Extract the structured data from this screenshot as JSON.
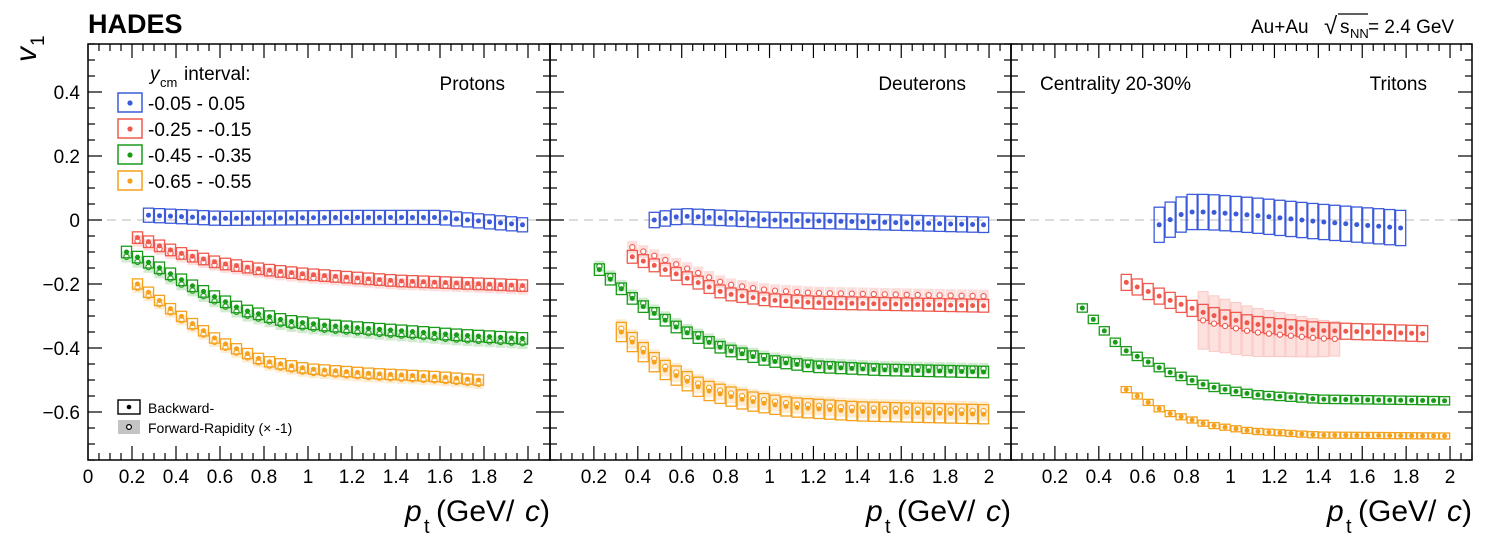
{
  "header": {
    "experiment": "HADES",
    "system_prefix": "Au+Au ",
    "sqrt_symbol": "√",
    "s_nn": "s",
    "s_nn_sub": "NN",
    "energy": " = 2.4 GeV"
  },
  "legend": {
    "title_var": "y",
    "title_sub": "cm",
    "title_rest": " interval:",
    "entries": [
      "-0.05 - 0.05",
      "-0.25 - -0.15",
      "-0.45 - -0.35",
      "-0.65 - -0.55"
    ],
    "marker_legend": [
      "Backward-",
      "Forward-Rapidity (× -1)"
    ]
  },
  "annotation": "Centrality 20-30%",
  "colors": {
    "blue": "#3b5bdb",
    "red": "#f05a4e",
    "green": "#1a9c1a",
    "orange": "#f5a11c",
    "reference_line": "#c8c8c8"
  },
  "chart_data": {
    "type": "scatter",
    "y_axis": {
      "label_main": "v",
      "label_sub": "1",
      "range": [
        -0.75,
        0.55
      ],
      "ticks": [
        0.4,
        0.2,
        0,
        -0.2,
        -0.4,
        -0.6
      ],
      "tick_labels": [
        "0.4",
        "0.2",
        "0",
        "−0.2",
        "−0.4",
        "−0.6"
      ]
    },
    "x_axis": {
      "label_main": "p",
      "label_sub": "t",
      "label_unit": " (GeV/",
      "label_c": "c",
      "label_close": ")",
      "range": [
        0,
        2.1
      ],
      "ticks": [
        [
          0,
          0.2,
          0.4,
          0.6,
          0.8,
          1,
          1.2,
          1.4,
          1.6,
          1.8,
          2
        ],
        [
          0.2,
          0.4,
          0.6,
          0.8,
          1,
          1.2,
          1.4,
          1.6,
          1.8,
          2
        ],
        [
          0.2,
          0.4,
          0.6,
          0.8,
          1,
          1.2,
          1.4,
          1.6,
          1.8,
          2
        ]
      ],
      "tick_labels": [
        [
          "0",
          "0.2",
          "0.4",
          "0.6",
          "0.8",
          "1",
          "1.2",
          "1.4",
          "1.6",
          "1.8",
          "2"
        ],
        [
          "0.2",
          "0.4",
          "0.6",
          "0.8",
          "1",
          "1.2",
          "1.4",
          "1.6",
          "1.8",
          "2"
        ],
        [
          "0.2",
          "0.4",
          "0.6",
          "0.8",
          "1",
          "1.2",
          "1.4",
          "1.6",
          "1.8",
          "2"
        ]
      ]
    },
    "panels": [
      {
        "title": "Protons",
        "series": [
          {
            "name": "-0.05 - 0.05",
            "color": "blue",
            "start": 0.275,
            "end": 1.975,
            "step": 0.05,
            "shape": [
              [
                0.275,
                0.015
              ],
              [
                0.6,
                0.005
              ],
              [
                1.2,
                0.008
              ],
              [
                1.6,
                0.008
              ],
              [
                1.975,
                -0.015
              ]
            ],
            "syst": 0.022,
            "forward_offset": 0
          },
          {
            "name": "-0.25 - -0.15",
            "color": "red",
            "start": 0.225,
            "end": 1.975,
            "step": 0.05,
            "shape": [
              [
                0.225,
                -0.055
              ],
              [
                0.4,
                -0.1
              ],
              [
                0.6,
                -0.135
              ],
              [
                0.8,
                -0.155
              ],
              [
                1.0,
                -0.17
              ],
              [
                1.2,
                -0.18
              ],
              [
                1.4,
                -0.19
              ],
              [
                1.6,
                -0.195
              ],
              [
                1.8,
                -0.2
              ],
              [
                1.975,
                -0.205
              ]
            ],
            "syst": 0.018,
            "forward_offset": -0.01
          },
          {
            "name": "-0.45 - -0.35",
            "color": "green",
            "start": 0.175,
            "end": 1.975,
            "step": 0.05,
            "shape": [
              [
                0.175,
                -0.1
              ],
              [
                0.3,
                -0.14
              ],
              [
                0.5,
                -0.215
              ],
              [
                0.7,
                -0.28
              ],
              [
                0.9,
                -0.315
              ],
              [
                1.1,
                -0.33
              ],
              [
                1.4,
                -0.345
              ],
              [
                1.7,
                -0.36
              ],
              [
                1.975,
                -0.37
              ]
            ],
            "syst": 0.018,
            "forward_offset": -0.015
          },
          {
            "name": "-0.65 - -0.55",
            "color": "orange",
            "start": 0.225,
            "end": 1.775,
            "step": 0.05,
            "shape": [
              [
                0.225,
                -0.2
              ],
              [
                0.4,
                -0.29
              ],
              [
                0.6,
                -0.38
              ],
              [
                0.8,
                -0.44
              ],
              [
                1.0,
                -0.465
              ],
              [
                1.3,
                -0.48
              ],
              [
                1.6,
                -0.49
              ],
              [
                1.775,
                -0.5
              ]
            ],
            "syst": 0.016,
            "forward_offset": -0.012
          }
        ]
      },
      {
        "title": "Deuterons",
        "series": [
          {
            "name": "-0.05 - 0.05",
            "color": "blue",
            "start": 0.475,
            "end": 1.975,
            "step": 0.05,
            "shape": [
              [
                0.475,
                0.0
              ],
              [
                0.6,
                0.012
              ],
              [
                0.8,
                0.006
              ],
              [
                1.0,
                0.0
              ],
              [
                1.4,
                -0.005
              ],
              [
                1.975,
                -0.015
              ]
            ],
            "syst": 0.024,
            "forward_offset": 0
          },
          {
            "name": "-0.25 - -0.15",
            "color": "red",
            "start": 0.375,
            "end": 1.975,
            "step": 0.05,
            "shape": [
              [
                0.375,
                -0.115
              ],
              [
                0.6,
                -0.175
              ],
              [
                0.8,
                -0.23
              ],
              [
                1.0,
                -0.25
              ],
              [
                1.2,
                -0.258
              ],
              [
                1.5,
                -0.262
              ],
              [
                1.975,
                -0.268
              ]
            ],
            "syst": 0.02,
            "forward_offset": 0.03
          },
          {
            "name": "-0.45 - -0.35",
            "color": "green",
            "start": 0.225,
            "end": 1.975,
            "step": 0.05,
            "shape": [
              [
                0.225,
                -0.155
              ],
              [
                0.4,
                -0.26
              ],
              [
                0.6,
                -0.345
              ],
              [
                0.8,
                -0.405
              ],
              [
                1.0,
                -0.44
              ],
              [
                1.2,
                -0.458
              ],
              [
                1.5,
                -0.468
              ],
              [
                1.975,
                -0.475
              ]
            ],
            "syst": 0.018,
            "forward_offset": 0.01
          },
          {
            "name": "-0.65 - -0.55",
            "color": "orange",
            "start": 0.325,
            "end": 1.975,
            "step": 0.05,
            "shape": [
              [
                0.325,
                -0.35
              ],
              [
                0.5,
                -0.46
              ],
              [
                0.7,
                -0.53
              ],
              [
                0.9,
                -0.565
              ],
              [
                1.1,
                -0.585
              ],
              [
                1.4,
                -0.598
              ],
              [
                1.975,
                -0.607
              ]
            ],
            "syst": 0.03,
            "forward_offset": 0.01
          }
        ]
      },
      {
        "title": "Tritons",
        "series": [
          {
            "name": "-0.05 - 0.05",
            "color": "blue",
            "start": 0.675,
            "end": 1.775,
            "step": 0.05,
            "shape": [
              [
                0.675,
                -0.015
              ],
              [
                0.8,
                0.025
              ],
              [
                0.9,
                0.025
              ],
              [
                1.1,
                0.015
              ],
              [
                1.4,
                -0.005
              ],
              [
                1.775,
                -0.025
              ]
            ],
            "syst": 0.055,
            "forward_offset": 0
          },
          {
            "name": "-0.25 - -0.15",
            "color": "red",
            "start": 0.525,
            "end": 1.875,
            "step": 0.05,
            "shape": [
              [
                0.525,
                -0.195
              ],
              [
                0.7,
                -0.245
              ],
              [
                0.9,
                -0.295
              ],
              [
                1.1,
                -0.325
              ],
              [
                1.4,
                -0.345
              ],
              [
                1.875,
                -0.355
              ]
            ],
            "syst": 0.025,
            "forward_offset": 0
          },
          {
            "name": "-0.45 - -0.35",
            "color": "green",
            "start": 0.325,
            "end": 1.975,
            "step": 0.05,
            "shape": [
              [
                0.325,
                -0.275
              ],
              [
                0.5,
                -0.4
              ],
              [
                0.7,
                -0.47
              ],
              [
                0.9,
                -0.52
              ],
              [
                1.1,
                -0.545
              ],
              [
                1.4,
                -0.56
              ],
              [
                1.975,
                -0.565
              ]
            ],
            "syst": 0.013,
            "forward_offset": 0
          },
          {
            "name": "-0.65 - -0.55",
            "color": "orange",
            "start": 0.525,
            "end": 1.975,
            "step": 0.05,
            "shape": [
              [
                0.525,
                -0.53
              ],
              [
                0.7,
                -0.6
              ],
              [
                0.9,
                -0.64
              ],
              [
                1.1,
                -0.66
              ],
              [
                1.4,
                -0.672
              ],
              [
                1.975,
                -0.675
              ]
            ],
            "syst": 0.006,
            "forward_offset": 0
          }
        ]
      }
    ],
    "forward_band": {
      "panel": 2,
      "series": 1,
      "x": [
        0.875,
        1.475
      ],
      "half_width": 0.09,
      "offset": -0.025
    }
  }
}
